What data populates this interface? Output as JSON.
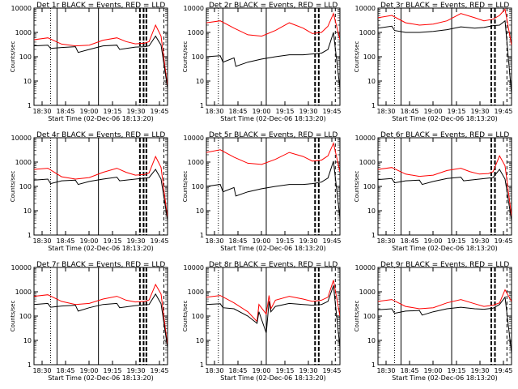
{
  "chart_data": [
    {
      "type": "line",
      "title": "Det 1r BLACK = Events, RED = LLD",
      "xlabel": "Start Time (02-Dec-06 18:13:20)",
      "ylabel": "Counts/sec",
      "ylim": [
        1,
        10000
      ],
      "yscale": "log",
      "xlim": [
        18.4,
        19.85
      ],
      "x_ticks": [
        "18:30",
        "18:45",
        "19:00",
        "19:15",
        "19:30",
        "19:45"
      ],
      "y_ticks": [
        "1",
        "10",
        "100",
        "1000",
        "10000"
      ],
      "series": [
        {
          "name": "LLD",
          "color": "#ff0000",
          "x": [
            18.4,
            18.55,
            18.7,
            18.85,
            19.0,
            19.15,
            19.3,
            19.4,
            19.5,
            19.6,
            19.65,
            19.72,
            19.78,
            19.85
          ],
          "y": [
            500,
            600,
            330,
            280,
            300,
            480,
            600,
            420,
            340,
            360,
            420,
            2000,
            700,
            6
          ]
        },
        {
          "name": "Events",
          "color": "#000000",
          "x": [
            18.4,
            18.55,
            18.58,
            18.7,
            18.85,
            18.88,
            19.0,
            19.15,
            19.3,
            19.33,
            19.5,
            19.6,
            19.65,
            19.72,
            19.78,
            19.85
          ],
          "y": [
            280,
            300,
            220,
            240,
            260,
            150,
            200,
            280,
            300,
            200,
            250,
            260,
            280,
            700,
            300,
            5
          ]
        }
      ]
    },
    {
      "type": "line",
      "title": "Det 2r BLACK = Events, RED = LLD",
      "xlabel": "Start Time (02-Dec-06 18:13:20)",
      "ylabel": "Counts/sec",
      "ylim": [
        1,
        10000
      ],
      "yscale": "log",
      "xlim": [
        18.4,
        19.85
      ],
      "x_ticks": [
        "18:30",
        "18:45",
        "19:00",
        "19:15",
        "19:30",
        "19:45"
      ],
      "y_ticks": [
        "1",
        "10",
        "100",
        "1000",
        "10000"
      ],
      "series": [
        {
          "name": "LLD",
          "color": "#ff0000",
          "x": [
            18.4,
            18.55,
            18.7,
            18.85,
            19.0,
            19.15,
            19.3,
            19.45,
            19.55,
            19.65,
            19.72,
            19.78,
            19.85
          ],
          "y": [
            2500,
            3000,
            1500,
            800,
            700,
            1200,
            2500,
            1500,
            900,
            1000,
            1800,
            6000,
            500
          ]
        },
        {
          "name": "Events",
          "color": "#000000",
          "x": [
            18.4,
            18.55,
            18.58,
            18.7,
            18.72,
            18.85,
            19.0,
            19.15,
            19.3,
            19.45,
            19.55,
            19.65,
            19.72,
            19.78,
            19.85
          ],
          "y": [
            100,
            110,
            60,
            90,
            40,
            60,
            80,
            100,
            120,
            120,
            130,
            140,
            200,
            1000,
            5
          ]
        }
      ]
    },
    {
      "type": "line",
      "title": "Det 3r BLACK = Events, RED = LLD",
      "xlabel": "Start Time (02-Dec-06 18:13:20)",
      "ylabel": "Counts/sec",
      "ylim": [
        1,
        10000
      ],
      "yscale": "log",
      "xlim": [
        18.4,
        19.85
      ],
      "x_ticks": [
        "18:30",
        "18:45",
        "19:00",
        "19:15",
        "19:30",
        "19:45"
      ],
      "y_ticks": [
        "1",
        "10",
        "100",
        "1000",
        "10000"
      ],
      "series": [
        {
          "name": "LLD",
          "color": "#ff0000",
          "x": [
            18.4,
            18.55,
            18.7,
            18.85,
            19.0,
            19.15,
            19.3,
            19.45,
            19.55,
            19.65,
            19.72,
            19.78,
            19.85
          ],
          "y": [
            4000,
            5000,
            2500,
            2000,
            2200,
            3000,
            6000,
            4000,
            3000,
            3500,
            5000,
            9000,
            300
          ]
        },
        {
          "name": "Events",
          "color": "#000000",
          "x": [
            18.4,
            18.55,
            18.58,
            18.7,
            18.85,
            19.0,
            19.15,
            19.3,
            19.45,
            19.55,
            19.65,
            19.72,
            19.78,
            19.85
          ],
          "y": [
            1500,
            1800,
            1200,
            1000,
            1000,
            1100,
            1300,
            1700,
            1500,
            1600,
            1900,
            2000,
            3000,
            3
          ]
        }
      ]
    },
    {
      "type": "line",
      "title": "Det 4r BLACK = Events, RED = LLD",
      "xlabel": "Start Time (02-Dec-06 18:13:20)",
      "ylabel": "Counts/sec",
      "ylim": [
        1,
        10000
      ],
      "yscale": "log",
      "xlim": [
        18.4,
        19.85
      ],
      "x_ticks": [
        "18:30",
        "18:45",
        "19:00",
        "19:15",
        "19:30",
        "19:45"
      ],
      "y_ticks": [
        "1",
        "10",
        "100",
        "1000",
        "10000"
      ],
      "series": [
        {
          "name": "LLD",
          "color": "#ff0000",
          "x": [
            18.4,
            18.55,
            18.7,
            18.85,
            19.0,
            19.15,
            19.3,
            19.4,
            19.5,
            19.6,
            19.65,
            19.72,
            19.78,
            19.85
          ],
          "y": [
            500,
            560,
            250,
            200,
            230,
            380,
            560,
            380,
            290,
            310,
            360,
            1700,
            600,
            5
          ]
        },
        {
          "name": "Events",
          "color": "#000000",
          "x": [
            18.4,
            18.55,
            18.58,
            18.7,
            18.85,
            18.88,
            19.0,
            19.15,
            19.3,
            19.33,
            19.5,
            19.6,
            19.65,
            19.72,
            19.78,
            19.85
          ],
          "y": [
            180,
            200,
            130,
            170,
            180,
            120,
            160,
            200,
            240,
            170,
            200,
            220,
            230,
            500,
            200,
            4
          ]
        }
      ]
    },
    {
      "type": "line",
      "title": "Det 5r BLACK = Events, RED = LLD",
      "xlabel": "Start Time (02-Dec-06 18:13:20)",
      "ylabel": "Counts/sec",
      "ylim": [
        1,
        10000
      ],
      "yscale": "log",
      "xlim": [
        18.4,
        19.85
      ],
      "x_ticks": [
        "18:30",
        "18:45",
        "19:00",
        "19:15",
        "19:30",
        "19:45"
      ],
      "y_ticks": [
        "1",
        "10",
        "100",
        "1000",
        "10000"
      ],
      "series": [
        {
          "name": "LLD",
          "color": "#ff0000",
          "x": [
            18.4,
            18.55,
            18.7,
            18.85,
            19.0,
            19.15,
            19.3,
            19.45,
            19.55,
            19.65,
            19.72,
            19.78,
            19.85
          ],
          "y": [
            2500,
            3200,
            1600,
            900,
            800,
            1300,
            2500,
            1700,
            1100,
            1200,
            1800,
            6000,
            400
          ]
        },
        {
          "name": "Events",
          "color": "#000000",
          "x": [
            18.4,
            18.55,
            18.58,
            18.7,
            18.72,
            18.85,
            19.0,
            19.15,
            19.3,
            19.45,
            19.55,
            19.65,
            19.72,
            19.78,
            19.85
          ],
          "y": [
            100,
            120,
            60,
            90,
            40,
            60,
            80,
            100,
            120,
            120,
            130,
            150,
            220,
            1100,
            5
          ]
        }
      ]
    },
    {
      "type": "line",
      "title": "Det 6r BLACK = Events, RED = LLD",
      "xlabel": "Start Time (02-Dec-06 18:13:20)",
      "ylabel": "Counts/sec",
      "ylim": [
        1,
        10000
      ],
      "yscale": "log",
      "xlim": [
        18.4,
        19.85
      ],
      "x_ticks": [
        "18:30",
        "18:45",
        "19:00",
        "19:15",
        "19:30",
        "19:45"
      ],
      "y_ticks": [
        "1",
        "10",
        "100",
        "1000",
        "10000"
      ],
      "series": [
        {
          "name": "LLD",
          "color": "#ff0000",
          "x": [
            18.4,
            18.55,
            18.7,
            18.85,
            19.0,
            19.15,
            19.3,
            19.4,
            19.5,
            19.6,
            19.65,
            19.72,
            19.78,
            19.85
          ],
          "y": [
            500,
            600,
            320,
            260,
            290,
            450,
            560,
            400,
            320,
            340,
            400,
            1800,
            700,
            6
          ]
        },
        {
          "name": "Events",
          "color": "#000000",
          "x": [
            18.4,
            18.55,
            18.58,
            18.7,
            18.85,
            18.88,
            19.0,
            19.15,
            19.3,
            19.33,
            19.5,
            19.6,
            19.65,
            19.72,
            19.78,
            19.85
          ],
          "y": [
            190,
            210,
            140,
            170,
            180,
            120,
            160,
            210,
            240,
            170,
            200,
            220,
            230,
            500,
            200,
            4
          ]
        }
      ]
    },
    {
      "type": "line",
      "title": "Det 7r BLACK = Events, RED = LLD",
      "xlabel": "Start Time (02-Dec-06 18:13:20)",
      "ylabel": "Counts/sec",
      "ylim": [
        1,
        10000
      ],
      "yscale": "log",
      "xlim": [
        18.4,
        19.85
      ],
      "x_ticks": [
        "18:30",
        "18:45",
        "19:00",
        "19:15",
        "19:30",
        "19:45"
      ],
      "y_ticks": [
        "1",
        "10",
        "100",
        "1000",
        "10000"
      ],
      "series": [
        {
          "name": "LLD",
          "color": "#ff0000",
          "x": [
            18.4,
            18.55,
            18.7,
            18.85,
            19.0,
            19.15,
            19.3,
            19.4,
            19.5,
            19.6,
            19.65,
            19.72,
            19.78,
            19.85
          ],
          "y": [
            650,
            750,
            400,
            300,
            330,
            500,
            650,
            450,
            380,
            400,
            460,
            2000,
            800,
            6
          ]
        },
        {
          "name": "Events",
          "color": "#000000",
          "x": [
            18.4,
            18.55,
            18.58,
            18.7,
            18.85,
            18.88,
            19.0,
            19.15,
            19.3,
            19.33,
            19.5,
            19.6,
            19.65,
            19.72,
            19.78,
            19.85
          ],
          "y": [
            300,
            330,
            230,
            260,
            280,
            160,
            220,
            300,
            330,
            220,
            270,
            290,
            300,
            800,
            320,
            5
          ]
        }
      ]
    },
    {
      "type": "line",
      "title": "Det 8r BLACK = Events, RED = LLD",
      "xlabel": "Start Time (02-Dec-06 18:13:20)",
      "ylabel": "Counts/sec",
      "ylim": [
        1,
        10000
      ],
      "yscale": "log",
      "xlim": [
        18.4,
        19.85
      ],
      "x_ticks": [
        "18:30",
        "18:45",
        "19:00",
        "19:15",
        "19:30",
        "19:45"
      ],
      "y_ticks": [
        "1",
        "10",
        "100",
        "1000",
        "10000"
      ],
      "series": [
        {
          "name": "LLD",
          "color": "#ff0000",
          "x": [
            18.4,
            18.55,
            18.7,
            18.85,
            18.95,
            18.97,
            19.05,
            19.08,
            19.1,
            19.15,
            19.3,
            19.45,
            19.55,
            19.65,
            19.72,
            19.78,
            19.85
          ],
          "y": [
            600,
            700,
            350,
            150,
            60,
            300,
            120,
            700,
            200,
            450,
            650,
            500,
            400,
            450,
            600,
            3000,
            100
          ]
        },
        {
          "name": "Events",
          "color": "#000000",
          "x": [
            18.4,
            18.55,
            18.58,
            18.7,
            18.85,
            18.95,
            18.97,
            19.05,
            19.08,
            19.1,
            19.15,
            19.3,
            19.45,
            19.55,
            19.65,
            19.72,
            19.78,
            19.85
          ],
          "y": [
            300,
            320,
            220,
            200,
            100,
            50,
            150,
            20,
            400,
            150,
            250,
            330,
            300,
            280,
            300,
            400,
            1800,
            5
          ]
        }
      ]
    },
    {
      "type": "line",
      "title": "Det 9r BLACK = Events, RED = LLD",
      "xlabel": "Start Time (02-Dec-06 18:13:20)",
      "ylabel": "Counts/sec",
      "ylim": [
        1,
        10000
      ],
      "yscale": "log",
      "xlim": [
        18.4,
        19.85
      ],
      "x_ticks": [
        "18:30",
        "18:45",
        "19:00",
        "19:15",
        "19:30",
        "19:45"
      ],
      "y_ticks": [
        "1",
        "10",
        "100",
        "1000",
        "10000"
      ],
      "series": [
        {
          "name": "LLD",
          "color": "#ff0000",
          "x": [
            18.4,
            18.55,
            18.7,
            18.85,
            19.0,
            19.15,
            19.3,
            19.45,
            19.55,
            19.65,
            19.72,
            19.78,
            19.85
          ],
          "y": [
            400,
            480,
            250,
            200,
            220,
            350,
            480,
            320,
            250,
            280,
            350,
            1200,
            400
          ]
        },
        {
          "name": "Events",
          "color": "#000000",
          "x": [
            18.4,
            18.55,
            18.58,
            18.7,
            18.85,
            18.88,
            19.0,
            19.15,
            19.3,
            19.45,
            19.55,
            19.65,
            19.72,
            19.78,
            19.85
          ],
          "y": [
            180,
            200,
            130,
            160,
            170,
            110,
            150,
            200,
            230,
            200,
            190,
            210,
            300,
            600,
            3
          ]
        }
      ]
    }
  ]
}
